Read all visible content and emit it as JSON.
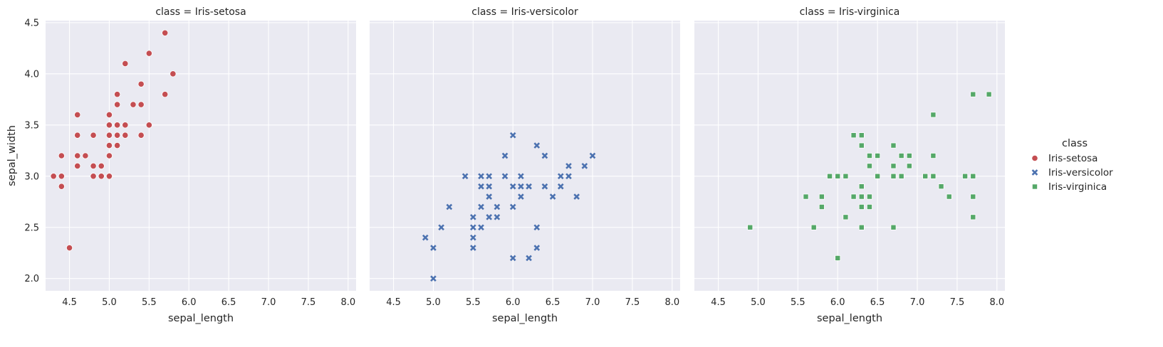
{
  "chart_data": {
    "type": "scatter",
    "facet_by": "class",
    "xlabel": "sepal_length",
    "ylabel": "sepal_width",
    "xlim": [
      4.2,
      8.1
    ],
    "ylim": [
      1.88,
      4.52
    ],
    "xticks": [
      "4.5",
      "5.0",
      "5.5",
      "6.0",
      "6.5",
      "7.0",
      "7.5",
      "8.0"
    ],
    "xtick_values": [
      4.5,
      5.0,
      5.5,
      6.0,
      6.5,
      7.0,
      7.5,
      8.0
    ],
    "yticks": [
      "2.0",
      "2.5",
      "3.0",
      "3.5",
      "4.0",
      "4.5"
    ],
    "ytick_values": [
      2.0,
      2.5,
      3.0,
      3.5,
      4.0,
      4.5
    ],
    "grid": true,
    "legend": {
      "title": "class",
      "placement": "right",
      "entries": [
        {
          "label": "Iris-setosa",
          "marker": "circle",
          "color": "#c44e52"
        },
        {
          "label": "Iris-versicolor",
          "marker": "x",
          "color": "#4c72b0"
        },
        {
          "label": "Iris-virginica",
          "marker": "square",
          "color": "#55a868"
        }
      ]
    },
    "facets": [
      {
        "title": "class = Iris-setosa",
        "series": "Iris-setosa",
        "marker": "circle",
        "color": "#c44e52",
        "points": [
          [
            4.3,
            3.0
          ],
          [
            4.4,
            3.0
          ],
          [
            4.4,
            2.9
          ],
          [
            4.4,
            3.2
          ],
          [
            4.5,
            2.3
          ],
          [
            4.6,
            3.1
          ],
          [
            4.6,
            3.2
          ],
          [
            4.6,
            3.4
          ],
          [
            4.6,
            3.6
          ],
          [
            4.7,
            3.2
          ],
          [
            4.8,
            3.0
          ],
          [
            4.8,
            3.1
          ],
          [
            4.8,
            3.4
          ],
          [
            4.9,
            3.0
          ],
          [
            4.9,
            3.1
          ],
          [
            5.0,
            3.0
          ],
          [
            5.0,
            3.2
          ],
          [
            5.0,
            3.3
          ],
          [
            5.0,
            3.4
          ],
          [
            5.0,
            3.5
          ],
          [
            5.0,
            3.6
          ],
          [
            5.1,
            3.3
          ],
          [
            5.1,
            3.4
          ],
          [
            5.1,
            3.5
          ],
          [
            5.1,
            3.7
          ],
          [
            5.1,
            3.8
          ],
          [
            5.2,
            3.4
          ],
          [
            5.2,
            3.5
          ],
          [
            5.2,
            4.1
          ],
          [
            5.3,
            3.7
          ],
          [
            5.4,
            3.4
          ],
          [
            5.4,
            3.7
          ],
          [
            5.4,
            3.9
          ],
          [
            5.5,
            3.5
          ],
          [
            5.5,
            4.2
          ],
          [
            5.7,
            3.8
          ],
          [
            5.7,
            4.4
          ],
          [
            5.8,
            4.0
          ]
        ]
      },
      {
        "title": "class = Iris-versicolor",
        "series": "Iris-versicolor",
        "marker": "x",
        "color": "#4c72b0",
        "points": [
          [
            4.9,
            2.4
          ],
          [
            5.0,
            2.0
          ],
          [
            5.0,
            2.3
          ],
          [
            5.1,
            2.5
          ],
          [
            5.2,
            2.7
          ],
          [
            5.4,
            3.0
          ],
          [
            5.5,
            2.3
          ],
          [
            5.5,
            2.4
          ],
          [
            5.5,
            2.5
          ],
          [
            5.5,
            2.6
          ],
          [
            5.6,
            2.5
          ],
          [
            5.6,
            2.7
          ],
          [
            5.6,
            2.9
          ],
          [
            5.6,
            3.0
          ],
          [
            5.7,
            2.6
          ],
          [
            5.7,
            2.8
          ],
          [
            5.7,
            2.9
          ],
          [
            5.7,
            3.0
          ],
          [
            5.8,
            2.6
          ],
          [
            5.8,
            2.7
          ],
          [
            5.9,
            3.0
          ],
          [
            5.9,
            3.2
          ],
          [
            6.0,
            2.2
          ],
          [
            6.0,
            2.7
          ],
          [
            6.0,
            2.9
          ],
          [
            6.0,
            3.4
          ],
          [
            6.1,
            2.8
          ],
          [
            6.1,
            2.9
          ],
          [
            6.1,
            3.0
          ],
          [
            6.2,
            2.2
          ],
          [
            6.2,
            2.9
          ],
          [
            6.3,
            2.3
          ],
          [
            6.3,
            2.5
          ],
          [
            6.3,
            3.3
          ],
          [
            6.4,
            2.9
          ],
          [
            6.4,
            3.2
          ],
          [
            6.5,
            2.8
          ],
          [
            6.6,
            2.9
          ],
          [
            6.6,
            3.0
          ],
          [
            6.7,
            3.0
          ],
          [
            6.7,
            3.1
          ],
          [
            6.8,
            2.8
          ],
          [
            6.9,
            3.1
          ],
          [
            7.0,
            3.2
          ]
        ]
      },
      {
        "title": "class = Iris-virginica",
        "series": "Iris-virginica",
        "marker": "square",
        "color": "#55a868",
        "points": [
          [
            4.9,
            2.5
          ],
          [
            5.6,
            2.8
          ],
          [
            5.7,
            2.5
          ],
          [
            5.8,
            2.7
          ],
          [
            5.8,
            2.8
          ],
          [
            5.9,
            3.0
          ],
          [
            6.0,
            2.2
          ],
          [
            6.0,
            3.0
          ],
          [
            6.1,
            2.6
          ],
          [
            6.1,
            3.0
          ],
          [
            6.2,
            2.8
          ],
          [
            6.2,
            3.4
          ],
          [
            6.3,
            2.5
          ],
          [
            6.3,
            2.7
          ],
          [
            6.3,
            2.8
          ],
          [
            6.3,
            2.9
          ],
          [
            6.3,
            3.3
          ],
          [
            6.3,
            3.4
          ],
          [
            6.4,
            2.7
          ],
          [
            6.4,
            2.8
          ],
          [
            6.4,
            3.1
          ],
          [
            6.4,
            3.2
          ],
          [
            6.5,
            3.0
          ],
          [
            6.5,
            3.2
          ],
          [
            6.7,
            2.5
          ],
          [
            6.7,
            3.0
          ],
          [
            6.7,
            3.1
          ],
          [
            6.7,
            3.3
          ],
          [
            6.8,
            3.0
          ],
          [
            6.8,
            3.2
          ],
          [
            6.9,
            3.1
          ],
          [
            6.9,
            3.2
          ],
          [
            7.1,
            3.0
          ],
          [
            7.2,
            3.0
          ],
          [
            7.2,
            3.2
          ],
          [
            7.2,
            3.6
          ],
          [
            7.3,
            2.9
          ],
          [
            7.4,
            2.8
          ],
          [
            7.6,
            3.0
          ],
          [
            7.7,
            2.6
          ],
          [
            7.7,
            2.8
          ],
          [
            7.7,
            3.0
          ],
          [
            7.7,
            3.8
          ],
          [
            7.9,
            3.8
          ]
        ]
      }
    ]
  }
}
